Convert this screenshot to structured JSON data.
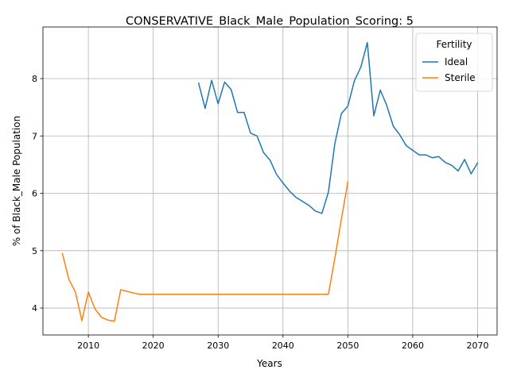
{
  "chart_data": {
    "type": "line",
    "title": "CONSERVATIVE_Black_Male_Population_Scoring: 5",
    "xlabel": "Years",
    "ylabel": "% of Black_Male Population",
    "xlim": [
      2003,
      2073
    ],
    "ylim": [
      3.53,
      8.9
    ],
    "xticks": [
      2010,
      2020,
      2030,
      2040,
      2050,
      2060,
      2070
    ],
    "yticks": [
      4,
      5,
      6,
      7,
      8
    ],
    "grid": true,
    "legend": {
      "title": "Fertility",
      "placement": "top-right"
    },
    "series": [
      {
        "name": "Ideal",
        "color": "#1f77b4",
        "x": [
          2027,
          2028,
          2029,
          2030,
          2031,
          2032,
          2033,
          2034,
          2035,
          2036,
          2037,
          2038,
          2039,
          2040,
          2041,
          2042,
          2043,
          2044,
          2045,
          2046,
          2047,
          2048,
          2049,
          2050,
          2051,
          2052,
          2053,
          2054,
          2055,
          2056,
          2057,
          2058,
          2059,
          2060,
          2061,
          2062,
          2063,
          2064,
          2065,
          2066,
          2067,
          2068,
          2069,
          2070
        ],
        "y": [
          7.92,
          7.48,
          7.97,
          7.56,
          7.94,
          7.81,
          7.41,
          7.41,
          7.05,
          7.0,
          6.71,
          6.58,
          6.33,
          6.18,
          6.04,
          5.93,
          5.86,
          5.79,
          5.69,
          5.65,
          6.02,
          6.87,
          7.39,
          7.52,
          7.96,
          8.2,
          8.63,
          7.35,
          7.8,
          7.53,
          7.17,
          7.02,
          6.83,
          6.75,
          6.67,
          6.67,
          6.62,
          6.64,
          6.54,
          6.49,
          6.39,
          6.59,
          6.34,
          6.53
        ]
      },
      {
        "name": "Sterile",
        "color": "#ff7f0e",
        "x": [
          2006,
          2007,
          2008,
          2009,
          2010,
          2011,
          2012,
          2013,
          2014,
          2015,
          2016,
          2017,
          2018,
          2019,
          2020,
          2021,
          2022,
          2023,
          2024,
          2025,
          2026,
          2027,
          2028,
          2029,
          2030,
          2031,
          2032,
          2033,
          2034,
          2035,
          2036,
          2037,
          2038,
          2039,
          2040,
          2041,
          2042,
          2043,
          2044,
          2045,
          2046,
          2047,
          2048,
          2049,
          2050
        ],
        "y": [
          4.95,
          4.5,
          4.28,
          3.78,
          4.28,
          3.99,
          3.84,
          3.79,
          3.77,
          4.32,
          4.29,
          4.26,
          4.24,
          4.24,
          4.24,
          4.24,
          4.24,
          4.24,
          4.24,
          4.24,
          4.24,
          4.24,
          4.24,
          4.24,
          4.24,
          4.24,
          4.24,
          4.24,
          4.24,
          4.24,
          4.24,
          4.24,
          4.24,
          4.24,
          4.24,
          4.24,
          4.24,
          4.24,
          4.24,
          4.24,
          4.24,
          4.24,
          4.87,
          5.55,
          6.2
        ]
      }
    ]
  }
}
